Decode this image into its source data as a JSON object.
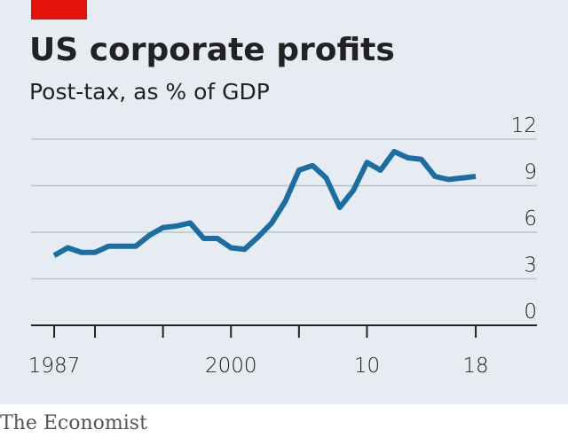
{
  "chart_data": {
    "type": "line",
    "title": "US corporate profits",
    "subtitle": "Post-tax, as % of GDP",
    "source": "The Economist",
    "x": [
      1987,
      1988,
      1989,
      1990,
      1991,
      1992,
      1993,
      1994,
      1995,
      1996,
      1997,
      1998,
      1999,
      2000,
      2001,
      2002,
      2003,
      2004,
      2005,
      2006,
      2007,
      2008,
      2009,
      2010,
      2011,
      2012,
      2013,
      2014,
      2015,
      2016,
      2017,
      2018
    ],
    "series": [
      {
        "name": "Post-tax profits",
        "color": "#1a6ea3",
        "values": [
          4.5,
          5.0,
          4.7,
          4.7,
          5.1,
          5.1,
          5.1,
          5.8,
          6.3,
          6.4,
          6.6,
          5.6,
          5.6,
          5.0,
          4.9,
          5.7,
          6.6,
          8.0,
          10.0,
          10.3,
          9.5,
          7.6,
          8.7,
          10.5,
          10.0,
          11.2,
          10.8,
          10.7,
          9.6,
          9.4,
          9.5,
          9.6
        ]
      }
    ],
    "xlim": [
      1985.3,
      2022.5
    ],
    "xticks": [
      {
        "value": 1987,
        "label": "1987"
      },
      2000,
      {
        "value": 2010,
        "label": "10"
      },
      {
        "value": 2018,
        "label": "18"
      }
    ],
    "xminorticks": [
      1990,
      1995,
      2005
    ],
    "ylim": [
      0,
      12
    ],
    "yticks": [
      0,
      3,
      6,
      9,
      12
    ],
    "grid": true
  }
}
